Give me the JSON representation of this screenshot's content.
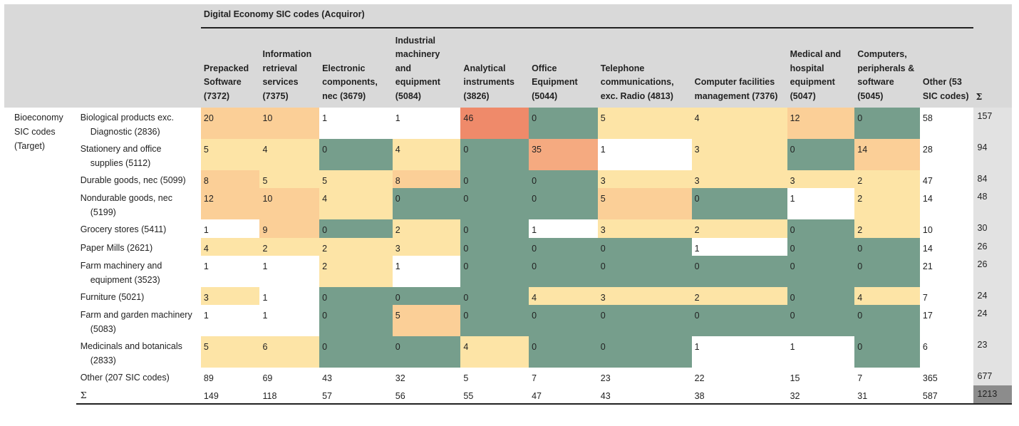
{
  "header": {
    "group_title": "Digital Economy SIC codes (Acquiror)",
    "columns": [
      "Prepacked Software (7372)",
      "Information retrieval services (7375)",
      "Electronic components, nec (3679)",
      "Industrial machinery and equipment (5084)",
      "Analytical instruments (3826)",
      "Office Equipment (5044)",
      "Telephone communications, exc. Radio (4813)",
      "Computer facilities management (7376)",
      "Medical and hospital equipment (5047)",
      "Computers, peripherals & software (5045)",
      "Other (53 SIC codes)"
    ],
    "sum_label": "Σ"
  },
  "row_group_label": "Bioeconomy SIC codes (Target)",
  "rows": [
    {
      "l1": "Biological products exc.",
      "l2": "Diagnostic (2836)",
      "values": [
        "20",
        "10",
        "1",
        "1",
        "46",
        "0",
        "5",
        "4",
        "12",
        "0",
        "58"
      ],
      "total": "157"
    },
    {
      "l1": "Stationery and office",
      "l2": "supplies (5112)",
      "values": [
        "5",
        "4",
        "0",
        "4",
        "0",
        "35",
        "1",
        "3",
        "0",
        "14",
        "28"
      ],
      "total": "94"
    },
    {
      "l1": "Durable goods, nec (5099)",
      "l2": "",
      "values": [
        "8",
        "5",
        "5",
        "8",
        "0",
        "0",
        "3",
        "3",
        "3",
        "2",
        "47"
      ],
      "total": "84"
    },
    {
      "l1": "Nondurable goods, nec",
      "l2": "(5199)",
      "values": [
        "12",
        "10",
        "4",
        "0",
        "0",
        "0",
        "5",
        "0",
        "1",
        "2",
        "14"
      ],
      "total": "48"
    },
    {
      "l1": "Grocery stores (5411)",
      "l2": "",
      "values": [
        "1",
        "9",
        "0",
        "2",
        "0",
        "1",
        "3",
        "2",
        "0",
        "2",
        "10"
      ],
      "total": "30"
    },
    {
      "l1": "Paper Mills (2621)",
      "l2": "",
      "values": [
        "4",
        "2",
        "2",
        "3",
        "0",
        "0",
        "0",
        "1",
        "0",
        "0",
        "14"
      ],
      "total": "26"
    },
    {
      "l1": "Farm machinery and",
      "l2": "equipment (3523)",
      "values": [
        "1",
        "1",
        "2",
        "1",
        "0",
        "0",
        "0",
        "0",
        "0",
        "0",
        "21"
      ],
      "total": "26"
    },
    {
      "l1": "Furniture (5021)",
      "l2": "",
      "values": [
        "3",
        "1",
        "0",
        "0",
        "0",
        "4",
        "3",
        "2",
        "0",
        "4",
        "7"
      ],
      "total": "24"
    },
    {
      "l1": "Farm and garden machinery",
      "l2": "(5083)",
      "values": [
        "1",
        "1",
        "0",
        "5",
        "0",
        "0",
        "0",
        "0",
        "0",
        "0",
        "17"
      ],
      "total": "24"
    },
    {
      "l1": "Medicinals and botanicals",
      "l2": "(2833)",
      "values": [
        "5",
        "6",
        "0",
        "0",
        "4",
        "0",
        "0",
        "1",
        "1",
        "0",
        "6"
      ],
      "total": "23"
    },
    {
      "l1": "Other (207 SIC codes)",
      "l2": "",
      "values": [
        "89",
        "69",
        "43",
        "32",
        "5",
        "7",
        "23",
        "22",
        "15",
        "7",
        "365"
      ],
      "total": "677"
    },
    {
      "l1": "Σ",
      "l2": "",
      "values": [
        "149",
        "118",
        "57",
        "56",
        "55",
        "47",
        "43",
        "38",
        "32",
        "31",
        "587"
      ],
      "total": "1213"
    }
  ],
  "colors": {
    "white": "#ffffff",
    "yellow": "#fde4a6",
    "orange": "#fbcf97",
    "orange_red": "#f5aa80",
    "red": "#ef8a6a",
    "green": "#769e8c",
    "header_gray": "#d9d9d9"
  },
  "cell_colors": [
    [
      "o",
      "o",
      "w",
      "w",
      "r",
      "g",
      "y",
      "y",
      "o",
      "g",
      "w"
    ],
    [
      "y",
      "y",
      "g",
      "y",
      "g",
      "or",
      "w",
      "y",
      "g",
      "o",
      "w"
    ],
    [
      "o",
      "y",
      "y",
      "o",
      "g",
      "g",
      "y",
      "y",
      "y",
      "y",
      "w"
    ],
    [
      "o",
      "o",
      "y",
      "g",
      "g",
      "g",
      "o",
      "g",
      "w",
      "y",
      "w"
    ],
    [
      "w",
      "o",
      "g",
      "y",
      "g",
      "w",
      "y",
      "y",
      "g",
      "y",
      "w"
    ],
    [
      "y",
      "y",
      "y",
      "y",
      "g",
      "g",
      "g",
      "w",
      "g",
      "g",
      "w"
    ],
    [
      "w",
      "w",
      "y",
      "w",
      "g",
      "g",
      "g",
      "g",
      "g",
      "g",
      "w"
    ],
    [
      "y",
      "w",
      "g",
      "g",
      "g",
      "y",
      "y",
      "y",
      "g",
      "y",
      "w"
    ],
    [
      "w",
      "w",
      "g",
      "o",
      "g",
      "g",
      "g",
      "g",
      "g",
      "g",
      "w"
    ],
    [
      "y",
      "y",
      "g",
      "g",
      "y",
      "g",
      "g",
      "w",
      "w",
      "g",
      "w"
    ],
    [
      "w",
      "w",
      "w",
      "w",
      "w",
      "w",
      "w",
      "w",
      "w",
      "w",
      "w"
    ],
    [
      "w",
      "w",
      "w",
      "w",
      "w",
      "w",
      "w",
      "w",
      "w",
      "w",
      "w"
    ]
  ]
}
